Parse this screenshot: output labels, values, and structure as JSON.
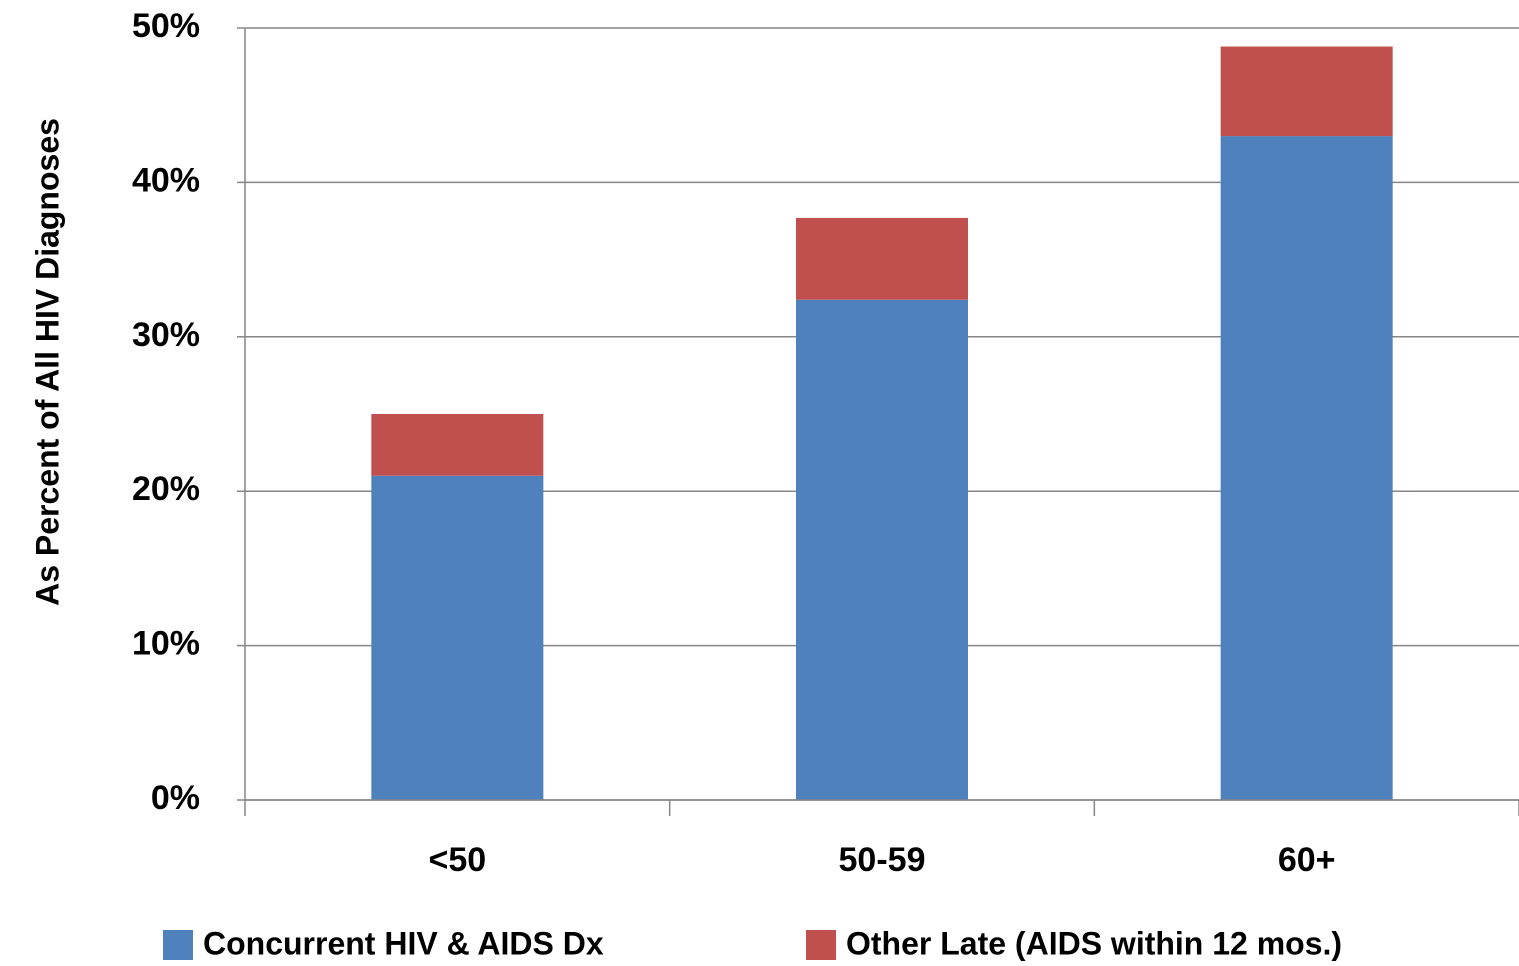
{
  "chart_data": {
    "type": "stacked-bar",
    "y_label": "As Percent of All HIV Diagnoses",
    "categories": [
      "<50",
      "50-59",
      "60+"
    ],
    "series": [
      {
        "name": "Concurrent HIV & AIDS Dx",
        "color": "#4f81bd",
        "values": [
          21,
          32.4,
          43
        ]
      },
      {
        "name": "Other Late (AIDS within 12 mos.)",
        "color": "#c0504d",
        "values": [
          4,
          5.3,
          5.8
        ]
      }
    ],
    "ylim": [
      0,
      50
    ],
    "yticks": [
      {
        "value": 0,
        "label": "0%"
      },
      {
        "value": 10,
        "label": "10%"
      },
      {
        "value": 20,
        "label": "20%"
      },
      {
        "value": 30,
        "label": "30%"
      },
      {
        "value": 40,
        "label": "40%"
      },
      {
        "value": 50,
        "label": "50%"
      }
    ],
    "grid": true
  }
}
